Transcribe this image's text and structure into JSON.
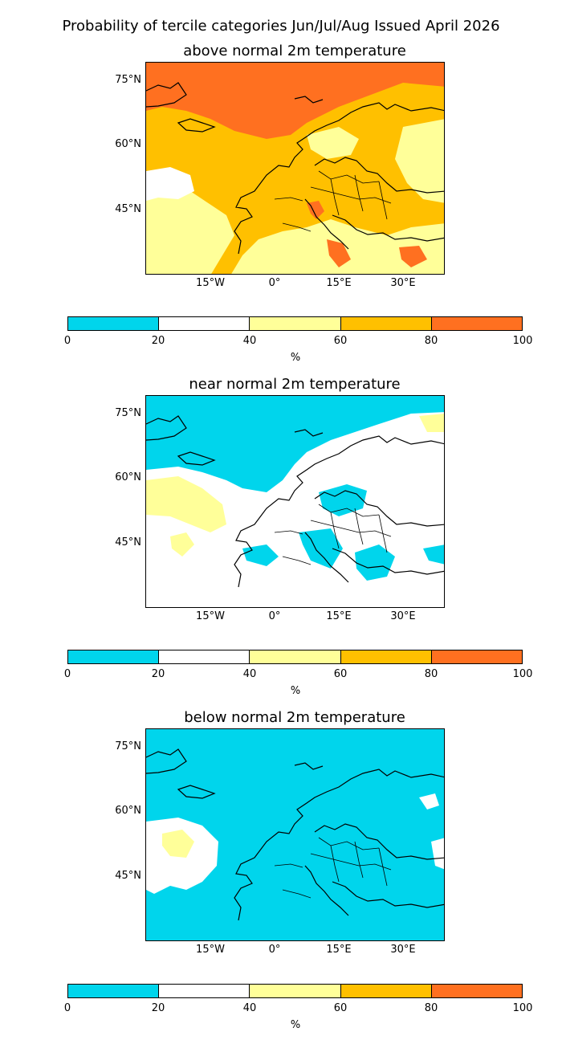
{
  "figure": {
    "title": "Probability of tercile categories Jun/Jul/Aug Issued April 2026"
  },
  "axes": {
    "lat_labels": [
      "75°N",
      "60°N",
      "45°N"
    ],
    "lon_labels": [
      "15°W",
      "0°",
      "15°E",
      "30°E"
    ]
  },
  "colorbar": {
    "ticks": [
      "0",
      "20",
      "40",
      "60",
      "80",
      "100"
    ],
    "unit": "%",
    "colors": [
      "#00d5ec",
      "#ffffff",
      "#ffff99",
      "#ffc000",
      "#ff7020"
    ]
  },
  "colors": {
    "coast": "#000000",
    "cyan": "#00d5ec",
    "white": "#ffffff",
    "yellow": "#ffff99",
    "orange": "#ffc000",
    "red": "#ff7020"
  },
  "panels": [
    {
      "id": "above",
      "title": "above normal 2m temperature",
      "dominant_category": "40-80%"
    },
    {
      "id": "near",
      "title": "near normal 2m temperature",
      "dominant_category": "20-40%"
    },
    {
      "id": "below",
      "title": "below normal 2m temperature",
      "dominant_category": "0-20%"
    }
  ]
}
